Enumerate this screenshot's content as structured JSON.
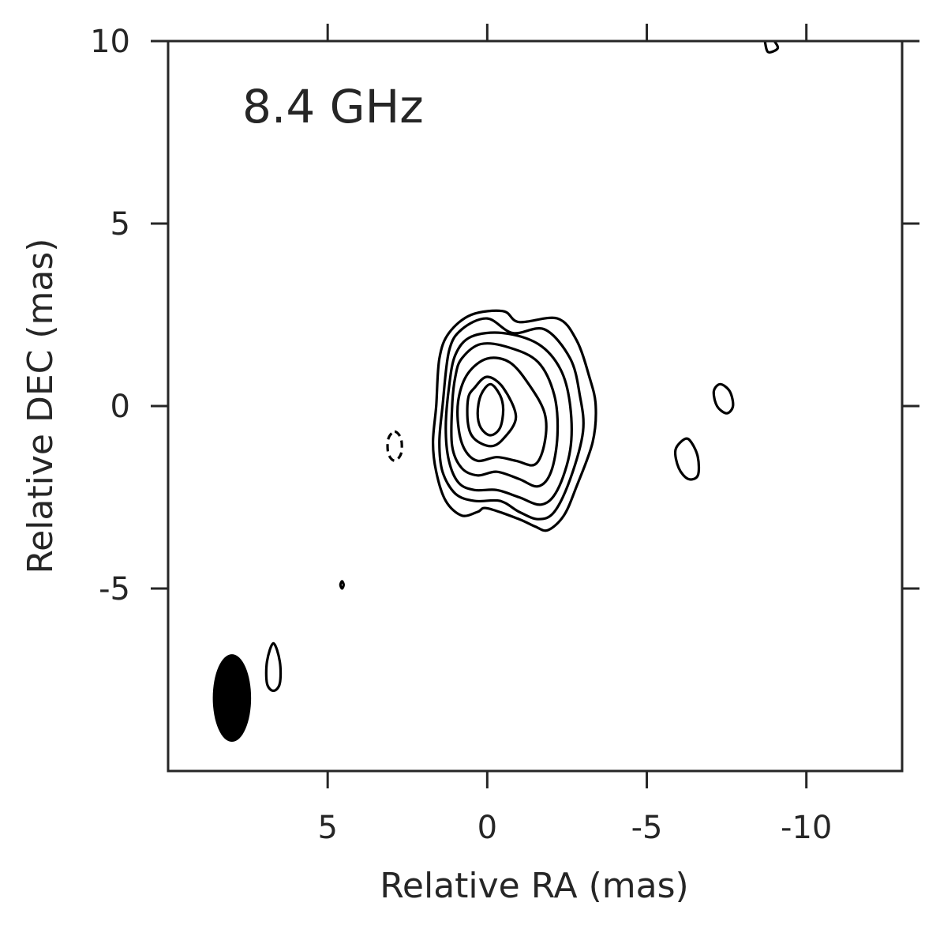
{
  "chart_data": {
    "type": "contour",
    "annotation": "8.4 GHz",
    "xlabel": "Relative RA (mas)",
    "ylabel": "Relative DEC (mas)",
    "xlim": [
      10,
      -13
    ],
    "ylim": [
      -10,
      10
    ],
    "x_inverted": true,
    "x_ticks": [
      5,
      0,
      -5,
      -10
    ],
    "x_tick_labels": [
      "5",
      "0",
      "-5",
      "-10"
    ],
    "y_ticks": [
      10,
      5,
      0,
      -5
    ],
    "y_tick_labels": [
      "10",
      "5",
      "0",
      "-5"
    ],
    "grid": false,
    "line_color": "#000000",
    "axis_color": "#262626",
    "beam": {
      "center": [
        8.0,
        -8.0
      ],
      "major_axis": 2.4,
      "minor_axis": 1.2,
      "position_angle_deg": 0,
      "fill": "#000000"
    },
    "contours": [
      {
        "level": 1,
        "style": "solid",
        "points": [
          [
            1.5,
            1.3
          ],
          [
            1.2,
            2.0
          ],
          [
            0.5,
            2.5
          ],
          [
            -0.5,
            2.6
          ],
          [
            -1.0,
            2.3
          ],
          [
            -2.2,
            2.4
          ],
          [
            -2.8,
            1.8
          ],
          [
            -3.2,
            0.8
          ],
          [
            -3.4,
            0.0
          ],
          [
            -3.3,
            -1.0
          ],
          [
            -2.8,
            -2.2
          ],
          [
            -2.4,
            -3.0
          ],
          [
            -1.9,
            -3.4
          ],
          [
            -1.5,
            -3.3
          ],
          [
            -1.0,
            -3.1
          ],
          [
            0.0,
            -2.8
          ],
          [
            0.3,
            -2.9
          ],
          [
            0.8,
            -3.0
          ],
          [
            1.3,
            -2.6
          ],
          [
            1.6,
            -1.8
          ],
          [
            1.7,
            -1.0
          ],
          [
            1.6,
            0.0
          ]
        ]
      },
      {
        "level": 2,
        "style": "solid",
        "points": [
          [
            1.2,
            1.5
          ],
          [
            0.8,
            2.1
          ],
          [
            0.0,
            2.4
          ],
          [
            -0.8,
            2.0
          ],
          [
            -1.8,
            2.1
          ],
          [
            -2.6,
            1.3
          ],
          [
            -2.9,
            0.3
          ],
          [
            -3.0,
            -0.7
          ],
          [
            -2.6,
            -2.0
          ],
          [
            -2.1,
            -2.9
          ],
          [
            -1.6,
            -3.1
          ],
          [
            -1.0,
            -2.9
          ],
          [
            -0.4,
            -2.6
          ],
          [
            0.4,
            -2.6
          ],
          [
            1.0,
            -2.4
          ],
          [
            1.4,
            -1.8
          ],
          [
            1.5,
            -1.0
          ],
          [
            1.4,
            0.0
          ]
        ]
      },
      {
        "level": 3,
        "style": "solid",
        "points": [
          [
            1.0,
            1.4
          ],
          [
            0.5,
            1.9
          ],
          [
            -0.5,
            2.0
          ],
          [
            -1.6,
            1.7
          ],
          [
            -2.3,
            1.0
          ],
          [
            -2.6,
            0.0
          ],
          [
            -2.6,
            -1.2
          ],
          [
            -2.2,
            -2.3
          ],
          [
            -1.7,
            -2.7
          ],
          [
            -1.0,
            -2.5
          ],
          [
            -0.3,
            -2.3
          ],
          [
            0.4,
            -2.3
          ],
          [
            0.9,
            -2.1
          ],
          [
            1.2,
            -1.5
          ],
          [
            1.3,
            -0.6
          ],
          [
            1.2,
            0.5
          ]
        ]
      },
      {
        "level": 4,
        "style": "solid",
        "points": [
          [
            0.8,
            1.3
          ],
          [
            0.2,
            1.7
          ],
          [
            -0.7,
            1.6
          ],
          [
            -1.6,
            1.2
          ],
          [
            -2.1,
            0.3
          ],
          [
            -2.2,
            -0.8
          ],
          [
            -2.0,
            -1.8
          ],
          [
            -1.6,
            -2.2
          ],
          [
            -1.0,
            -2.0
          ],
          [
            -0.3,
            -1.8
          ],
          [
            0.3,
            -1.9
          ],
          [
            0.8,
            -1.7
          ],
          [
            1.1,
            -1.1
          ],
          [
            1.1,
            0.0
          ],
          [
            1.0,
            0.8
          ]
        ]
      },
      {
        "level": 5,
        "style": "solid",
        "points": [
          [
            0.6,
            0.9
          ],
          [
            0.0,
            1.3
          ],
          [
            -0.7,
            1.2
          ],
          [
            -1.3,
            0.6
          ],
          [
            -1.8,
            -0.2
          ],
          [
            -1.8,
            -1.0
          ],
          [
            -1.5,
            -1.6
          ],
          [
            -0.9,
            -1.5
          ],
          [
            -0.3,
            -1.4
          ],
          [
            0.3,
            -1.5
          ],
          [
            0.7,
            -1.2
          ],
          [
            0.9,
            -0.6
          ],
          [
            0.9,
            0.2
          ]
        ]
      },
      {
        "level": 6,
        "style": "solid",
        "points": [
          [
            0.4,
            0.5
          ],
          [
            0.0,
            0.8
          ],
          [
            -0.5,
            0.5
          ],
          [
            -0.9,
            -0.3
          ],
          [
            -0.5,
            -0.9
          ],
          [
            -0.1,
            -1.1
          ],
          [
            0.4,
            -0.9
          ],
          [
            0.6,
            -0.5
          ],
          [
            0.6,
            0.2
          ]
        ]
      },
      {
        "level": 7,
        "style": "solid",
        "points": [
          [
            0.2,
            0.3
          ],
          [
            -0.1,
            0.6
          ],
          [
            -0.4,
            0.3
          ],
          [
            -0.5,
            -0.1
          ],
          [
            -0.4,
            -0.6
          ],
          [
            -0.1,
            -0.8
          ],
          [
            0.2,
            -0.6
          ],
          [
            0.3,
            -0.2
          ]
        ]
      },
      {
        "level": -1,
        "style": "dashed",
        "points": [
          [
            2.9,
            -0.7
          ],
          [
            2.7,
            -0.9
          ],
          [
            2.7,
            -1.3
          ],
          [
            2.9,
            -1.5
          ],
          [
            3.1,
            -1.3
          ],
          [
            3.1,
            -0.9
          ]
        ]
      },
      {
        "level": 1,
        "style": "solid",
        "points": [
          [
            4.55,
            -4.8
          ],
          [
            4.5,
            -4.9
          ],
          [
            4.55,
            -5.0
          ],
          [
            4.6,
            -4.9
          ]
        ]
      },
      {
        "level": 1,
        "style": "solid",
        "points": [
          [
            6.7,
            -6.5
          ],
          [
            6.5,
            -7.0
          ],
          [
            6.5,
            -7.6
          ],
          [
            6.7,
            -7.8
          ],
          [
            6.9,
            -7.6
          ],
          [
            6.9,
            -7.0
          ]
        ]
      },
      {
        "level": 1,
        "style": "solid",
        "points": [
          [
            -6.2,
            -0.9
          ],
          [
            -5.9,
            -1.2
          ],
          [
            -6.0,
            -1.7
          ],
          [
            -6.3,
            -2.0
          ],
          [
            -6.6,
            -1.9
          ],
          [
            -6.6,
            -1.4
          ],
          [
            -6.4,
            -1.0
          ]
        ]
      },
      {
        "level": 1,
        "style": "solid",
        "points": [
          [
            -7.3,
            0.6
          ],
          [
            -7.1,
            0.4
          ],
          [
            -7.2,
            0.0
          ],
          [
            -7.5,
            -0.2
          ],
          [
            -7.7,
            0.0
          ],
          [
            -7.6,
            0.4
          ]
        ]
      },
      {
        "level": 1,
        "style": "open",
        "points": [
          [
            -8.7,
            10.0
          ],
          [
            -8.8,
            9.7
          ],
          [
            -9.1,
            9.8
          ],
          [
            -9.0,
            10.0
          ]
        ]
      }
    ]
  }
}
